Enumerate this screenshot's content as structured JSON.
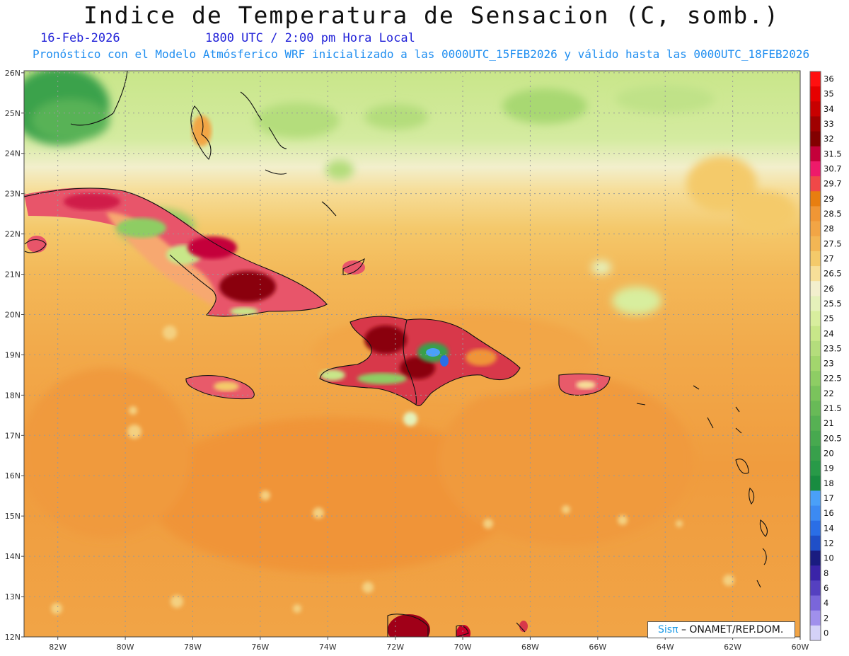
{
  "header": {
    "title": "Indice de Temperatura de Sensacion (C, somb.)",
    "date": "16-Feb-2026",
    "valid_time": "1800 UTC / 2:00 pm Hora Local",
    "subtitle": "Pronóstico con el Modelo Atmósferico WRF inicializado a las 0000UTC_15FEB2026 y válido hasta las  0000UTC_18FEB2026"
  },
  "axes": {
    "lon_labels": [
      "82W",
      "80W",
      "78W",
      "76W",
      "74W",
      "72W",
      "70W",
      "68W",
      "66W",
      "64W",
      "62W",
      "60W"
    ],
    "lat_labels": [
      "26N",
      "25N",
      "24N",
      "23N",
      "22N",
      "21N",
      "20N",
      "19N",
      "18N",
      "17N",
      "16N",
      "15N",
      "14N",
      "13N",
      "12N"
    ]
  },
  "colorbar": {
    "labels": [
      "36",
      "35",
      "34",
      "33",
      "32",
      "31.5",
      "30.7",
      "29.7",
      "29",
      "28.5",
      "28",
      "27.5",
      "27",
      "26.5",
      "26",
      "25.5",
      "25",
      "24",
      "23.5",
      "23",
      "22.5",
      "22",
      "21.5",
      "21",
      "20.5",
      "20",
      "19",
      "18",
      "17",
      "16",
      "14",
      "12",
      "10",
      "8",
      "6",
      "4",
      "2",
      "0"
    ],
    "colors": [
      "#ff1010",
      "#e60000",
      "#c80000",
      "#a00000",
      "#820000",
      "#c4003a",
      "#ee1a6a",
      "#f04848",
      "#e87e10",
      "#f09635",
      "#f2a545",
      "#f3b654",
      "#f4ca6a",
      "#f7df98",
      "#f3efcd",
      "#e5f1ba",
      "#d8ee9e",
      "#c8e789",
      "#b4dd7c",
      "#a2d66d",
      "#8ecd64",
      "#7ac35c",
      "#68ba57",
      "#56b153",
      "#47a94f",
      "#38a04b",
      "#289a48",
      "#188c40",
      "#4aa0f8",
      "#3c8af2",
      "#2a6ee6",
      "#1f4fc8",
      "#1a1c80",
      "#3a24a8",
      "#5540c0",
      "#7a66da",
      "#a090ec",
      "#d4d2f8"
    ]
  },
  "credit": {
    "brand": "Sisπ",
    "text": " – ONAMET/REP.DOM."
  },
  "colors": {
    "ocean_dominant": "#f0a848",
    "land_hot": "#b0102a",
    "north_cool": "#c8e68a",
    "grid": "#aaaaaa"
  }
}
